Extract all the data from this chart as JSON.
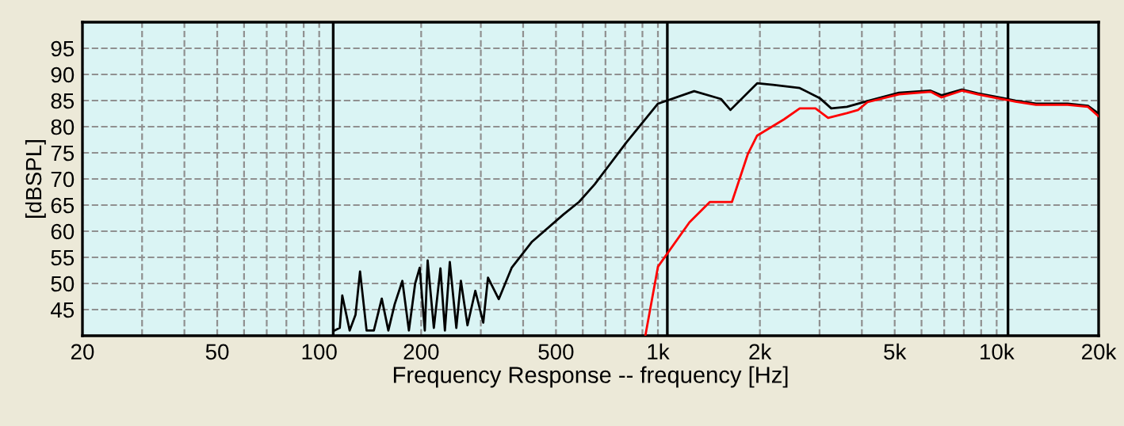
{
  "chart_data": {
    "type": "line",
    "xlabel": "Frequency Response -- frequency [Hz]",
    "ylabel": "[dBSPL]",
    "log": "x",
    "grid": true,
    "line_style": "solid",
    "xlim": [
      20,
      20000
    ],
    "ylim": [
      40,
      100
    ],
    "xticks": [
      20,
      {
        "value": 30,
        "label": null
      },
      {
        "value": 40,
        "label": null
      },
      50,
      {
        "value": 60,
        "label": null
      },
      {
        "value": 70,
        "label": null
      },
      {
        "value": 80,
        "label": null
      },
      {
        "value": 90,
        "label": null
      },
      100,
      200,
      {
        "value": 300,
        "label": null
      },
      {
        "value": 400,
        "label": null
      },
      500,
      {
        "value": 600,
        "label": null
      },
      {
        "value": 700,
        "label": null
      },
      {
        "value": 800,
        "label": null
      },
      {
        "value": 900,
        "label": null
      },
      {
        "value": 1000,
        "label": "1k"
      },
      {
        "value": 2000,
        "label": "2k"
      },
      {
        "value": 3000,
        "label": null
      },
      {
        "value": 4000,
        "label": null
      },
      {
        "value": 5000,
        "label": "5k"
      },
      {
        "value": 6000,
        "label": null
      },
      {
        "value": 7000,
        "label": null
      },
      {
        "value": 8000,
        "label": null
      },
      {
        "value": 9000,
        "label": null
      },
      {
        "value": 10000,
        "label": "10k"
      },
      {
        "value": 20000,
        "label": "20k"
      }
    ],
    "yticks": [
      45,
      50,
      55,
      60,
      65,
      70,
      75,
      80,
      85,
      90,
      95
    ],
    "series": [
      {
        "color": "#000000",
        "x": [
          111,
          115,
          117,
          123,
          128,
          132,
          138,
          145,
          153,
          160,
          167,
          176,
          184,
          192,
          198,
          205,
          209,
          218,
          228,
          235,
          243,
          254,
          262,
          274,
          289,
          305,
          315,
          339,
          370,
          425,
          526,
          585,
          651,
          807,
          1000,
          1279,
          1535,
          1637,
          1963,
          2186,
          2622,
          3013,
          3249,
          3615,
          4156,
          5147,
          6377,
          6874,
          7900,
          8790,
          9790,
          11370,
          13070,
          16200,
          18600,
          20000
        ],
        "values": [
          41,
          41.5,
          47.7,
          41,
          44,
          52.3,
          41,
          41,
          47.1,
          41,
          46,
          50.5,
          41,
          50,
          53,
          41,
          54.4,
          41.5,
          52.9,
          41,
          54.1,
          41.5,
          50.5,
          42,
          48.6,
          42.5,
          51.1,
          47,
          53,
          58,
          63.2,
          65.6,
          69,
          77,
          84.4,
          86.8,
          85.3,
          83.2,
          88.3,
          88,
          87.4,
          85.4,
          83.5,
          83.8,
          84.9,
          86.5,
          86.9,
          86,
          87.1,
          86.4,
          85.8,
          85,
          84.4,
          84.4,
          84,
          82.5
        ]
      },
      {
        "color": "#ff0000",
        "x": [
          918,
          1000,
          1239,
          1424,
          1654,
          1841,
          1963,
          2356,
          2622,
          2918,
          3180,
          3615,
          3897,
          4156,
          5147,
          6377,
          6874,
          7900,
          8790,
          9790,
          11370,
          13070,
          16200,
          18600,
          20000
        ],
        "values": [
          40,
          53.2,
          61.7,
          65.6,
          65.6,
          74.7,
          78.3,
          81.4,
          83.5,
          83.5,
          81.7,
          82.6,
          83.2,
          84.7,
          86.2,
          86.7,
          85.6,
          86.9,
          86.2,
          85.6,
          84.8,
          84.2,
          84.2,
          83.8,
          82
        ]
      }
    ],
    "ref_lines": [
      {
        "axis": "x",
        "value": 110,
        "color": "#000000"
      },
      {
        "axis": "x",
        "value": 1066,
        "color": "#000000"
      },
      {
        "axis": "x",
        "value": 10800,
        "color": "#000000"
      }
    ]
  }
}
